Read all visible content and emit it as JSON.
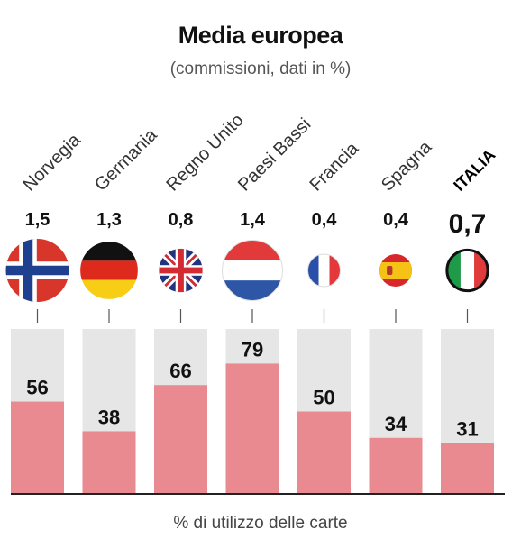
{
  "header": {
    "title": "Media europea",
    "subtitle": "(commissioni, dati in %)"
  },
  "footer": {
    "label": "% di utilizzo delle carte"
  },
  "colors": {
    "bar_fill": "#e98a90",
    "bar_track": "#e6e6e6",
    "axis": "#222222",
    "tick": "#555555"
  },
  "chart_data": {
    "type": "bar",
    "categories": [
      "Norvegia",
      "Germania",
      "Regno Unito",
      "Paesi Bassi",
      "Francia",
      "Spagna",
      "ITALIA"
    ],
    "highlight": "ITALIA",
    "commissions": [
      "1,5",
      "1,3",
      "0,8",
      "1,4",
      "0,4",
      "0,4",
      "0,7"
    ],
    "commission_values": [
      1.5,
      1.3,
      0.8,
      1.4,
      0.4,
      0.4,
      0.7
    ],
    "flag_icons": [
      "norway-flag-icon",
      "germany-flag-icon",
      "uk-flag-icon",
      "netherlands-flag-icon",
      "france-flag-icon",
      "spain-flag-icon",
      "italy-flag-icon"
    ],
    "values": [
      56,
      38,
      66,
      79,
      50,
      34,
      31
    ],
    "ylim": [
      0,
      100
    ],
    "title": "Media europea",
    "subtitle": "(commissioni, dati in %)",
    "xlabel": "% di utilizzo delle carte",
    "ylabel": "",
    "grid": false,
    "legend": "none"
  }
}
